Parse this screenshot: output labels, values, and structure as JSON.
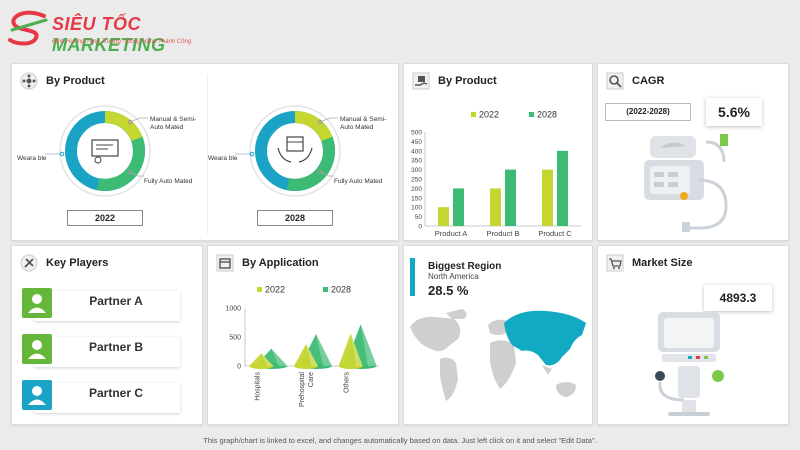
{
  "brand": {
    "name_part1": "SIÊU TỐC",
    "name_part2": "MARKETING",
    "tagline": "Định Hướng Tăng Trưởng - Đồng Hành Thành Công"
  },
  "by_product_donuts": {
    "title": "By Product",
    "donuts": [
      {
        "year": "2022",
        "label_left": "Weara ble",
        "label_right_top": "Manual & Semi-Auto Mated",
        "label_right_bottom": "Fully Auto Mated"
      },
      {
        "year": "2028",
        "label_left": "Weara ble",
        "label_right_top": "Manual & Semi-Auto Mated",
        "label_right_bottom": "Fully Auto Mated"
      }
    ]
  },
  "by_product_bars": {
    "title": "By Product",
    "chart_data": {
      "type": "bar",
      "categories": [
        "Product A",
        "Product B",
        "Product C"
      ],
      "series": [
        {
          "name": "2022",
          "values": [
            100,
            200,
            300
          ],
          "color": "#c5d630"
        },
        {
          "name": "2028",
          "values": [
            200,
            300,
            400
          ],
          "color": "#3dbb74"
        }
      ],
      "ylim": [
        0,
        500
      ],
      "yticks": [
        "0",
        "50",
        "100",
        "150",
        "200",
        "250",
        "300",
        "350",
        "400",
        "450",
        "500"
      ],
      "grid": false,
      "legend": "top"
    }
  },
  "cagr": {
    "title": "CAGR",
    "range": "(2022-2028)",
    "value": "5.6%"
  },
  "key_players": {
    "title": "Key Players",
    "partners": [
      "Partner A",
      "Partner B",
      "Partner C"
    ]
  },
  "by_application": {
    "title": "By Application",
    "chart_data": {
      "type": "bar",
      "categories": [
        "Hospitals",
        "Prehospital Care",
        "Others"
      ],
      "category_lines": [
        [
          "Hospitals"
        ],
        [
          "Prehospital",
          "Care"
        ],
        [
          "Others"
        ]
      ],
      "series": [
        {
          "name": "2022",
          "values": [
            220,
            380,
            560
          ],
          "color": "#c5d630"
        },
        {
          "name": "2028",
          "values": [
            300,
            550,
            720
          ],
          "color": "#3dbb74"
        }
      ],
      "ylim": [
        0,
        1000
      ],
      "yticks": [
        "0",
        "500",
        "1000"
      ],
      "legend": "top"
    }
  },
  "region": {
    "title": "Biggest Region",
    "name": "North America",
    "value": "28.5 %"
  },
  "market_size": {
    "title": "Market Size",
    "value": "4893.3"
  },
  "footer": "This graph/chart is linked to excel, and changes automatically based on data. Just left click on it and select \"Edit Data\".",
  "colors": {
    "lime": "#c5d630",
    "green": "#3dbb74",
    "teal": "#12a9c2",
    "blue": "#1ba3c6",
    "partner_green": "#64b738"
  }
}
